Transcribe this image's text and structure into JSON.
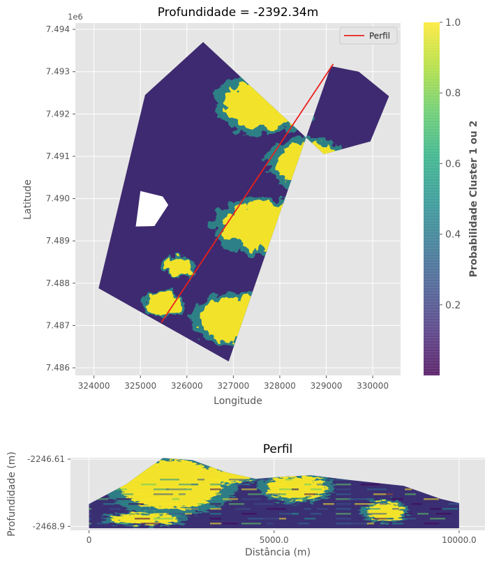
{
  "chart_data": [
    {
      "type": "scatter",
      "title": "Profundidade = -2392.34m",
      "xlabel": "Longitude",
      "ylabel": "Latitude",
      "y_offset_label": "1e6",
      "xlim": [
        323600,
        330600
      ],
      "ylim": [
        7.48582,
        7.49415
      ],
      "x_ticks": [
        324000,
        325000,
        326000,
        327000,
        328000,
        329000,
        330000
      ],
      "y_ticks": [
        7.486,
        7.487,
        7.488,
        7.489,
        7.49,
        7.491,
        7.492,
        7.493,
        7.494
      ],
      "x_tick_labels": [
        "324000",
        "325000",
        "326000",
        "327000",
        "328000",
        "329000",
        "330000"
      ],
      "y_tick_labels": [
        "7.486",
        "7.487",
        "7.488",
        "7.489",
        "7.490",
        "7.491",
        "7.492",
        "7.493",
        "7.494"
      ],
      "survey_outline": [
        [
          324100,
          7.48788
        ],
        [
          326900,
          7.48615
        ],
        [
          327400,
          7.48775
        ],
        [
          329100,
          7.49313
        ],
        [
          329700,
          7.493
        ],
        [
          330350,
          7.49242
        ],
        [
          329950,
          7.49135
        ],
        [
          328950,
          7.49105
        ],
        [
          326350,
          7.4937
        ],
        [
          325100,
          7.49245
        ]
      ],
      "hole_outline": [
        [
          325000,
          7.49018
        ],
        [
          324900,
          7.48934
        ],
        [
          325300,
          7.48935
        ],
        [
          325600,
          7.48985
        ],
        [
          325480,
          7.49005
        ]
      ],
      "high_probability_zones": [
        {
          "center": [
            327700,
            7.49225
          ],
          "radius": [
            900,
            0.0006
          ]
        },
        {
          "center": [
            328600,
            7.49085
          ],
          "radius": [
            700,
            0.0005
          ]
        },
        {
          "center": [
            327750,
            7.48935
          ],
          "radius": [
            1000,
            0.00055
          ]
        },
        {
          "center": [
            327000,
            7.48715
          ],
          "radius": [
            750,
            0.0005
          ]
        },
        {
          "center": [
            325500,
            7.4875
          ],
          "radius": [
            350,
            0.00025
          ]
        },
        {
          "center": [
            325800,
            7.4884
          ],
          "radius": [
            300,
            0.0002
          ]
        }
      ],
      "series": [
        {
          "name": "Perfil",
          "x": [
            325450,
            329150
          ],
          "y": [
            7.48707,
            7.49318
          ],
          "color": "#e8211d"
        }
      ],
      "legend_position": "top-right",
      "grid": true,
      "colorbar": {
        "label": "Probabilidade Cluster 1 ou 2",
        "ticks": [
          0.2,
          0.4,
          0.6,
          0.8,
          1.0
        ],
        "tick_labels": [
          "0.2",
          "0.4",
          "0.6",
          "0.8",
          "1.0"
        ],
        "range": [
          0,
          1
        ],
        "colormap": "viridis"
      }
    },
    {
      "type": "heatmap",
      "title": "Perfil",
      "xlabel": "Distância (m)",
      "ylabel": "Profundidade (m)",
      "xlim": [
        -500,
        10700
      ],
      "ylim": [
        -2482,
        -2242
      ],
      "x_ticks": [
        0,
        5000,
        10000
      ],
      "x_tick_labels": [
        "0",
        "5000.0",
        "10000.0"
      ],
      "y_ticks": [
        -2246.61,
        -2468.9
      ],
      "y_tick_labels": [
        "-2246.61",
        "-2468.9"
      ],
      "top_profile": {
        "x": [
          0,
          1000,
          1500,
          2000,
          2800,
          3200,
          3700,
          4500,
          5200,
          6000,
          7000,
          8500,
          9500,
          10000
        ],
        "depth": [
          -2395,
          -2330,
          -2285,
          -2243,
          -2250,
          -2268,
          -2290,
          -2312,
          -2305,
          -2300,
          -2315,
          -2335,
          -2378,
          -2392
        ]
      },
      "bottom_depth": -2475,
      "high_probability_zones": [
        {
          "center": [
            2200,
            -2330
          ],
          "radius": [
            1400,
            80
          ]
        },
        {
          "center": [
            3800,
            -2300
          ],
          "radius": [
            600,
            25
          ]
        },
        {
          "center": [
            5600,
            -2340
          ],
          "radius": [
            800,
            40
          ]
        },
        {
          "center": [
            8000,
            -2420
          ],
          "radius": [
            500,
            30
          ]
        },
        {
          "center": [
            1500,
            -2445
          ],
          "radius": [
            900,
            18
          ]
        }
      ],
      "grid": true
    }
  ]
}
